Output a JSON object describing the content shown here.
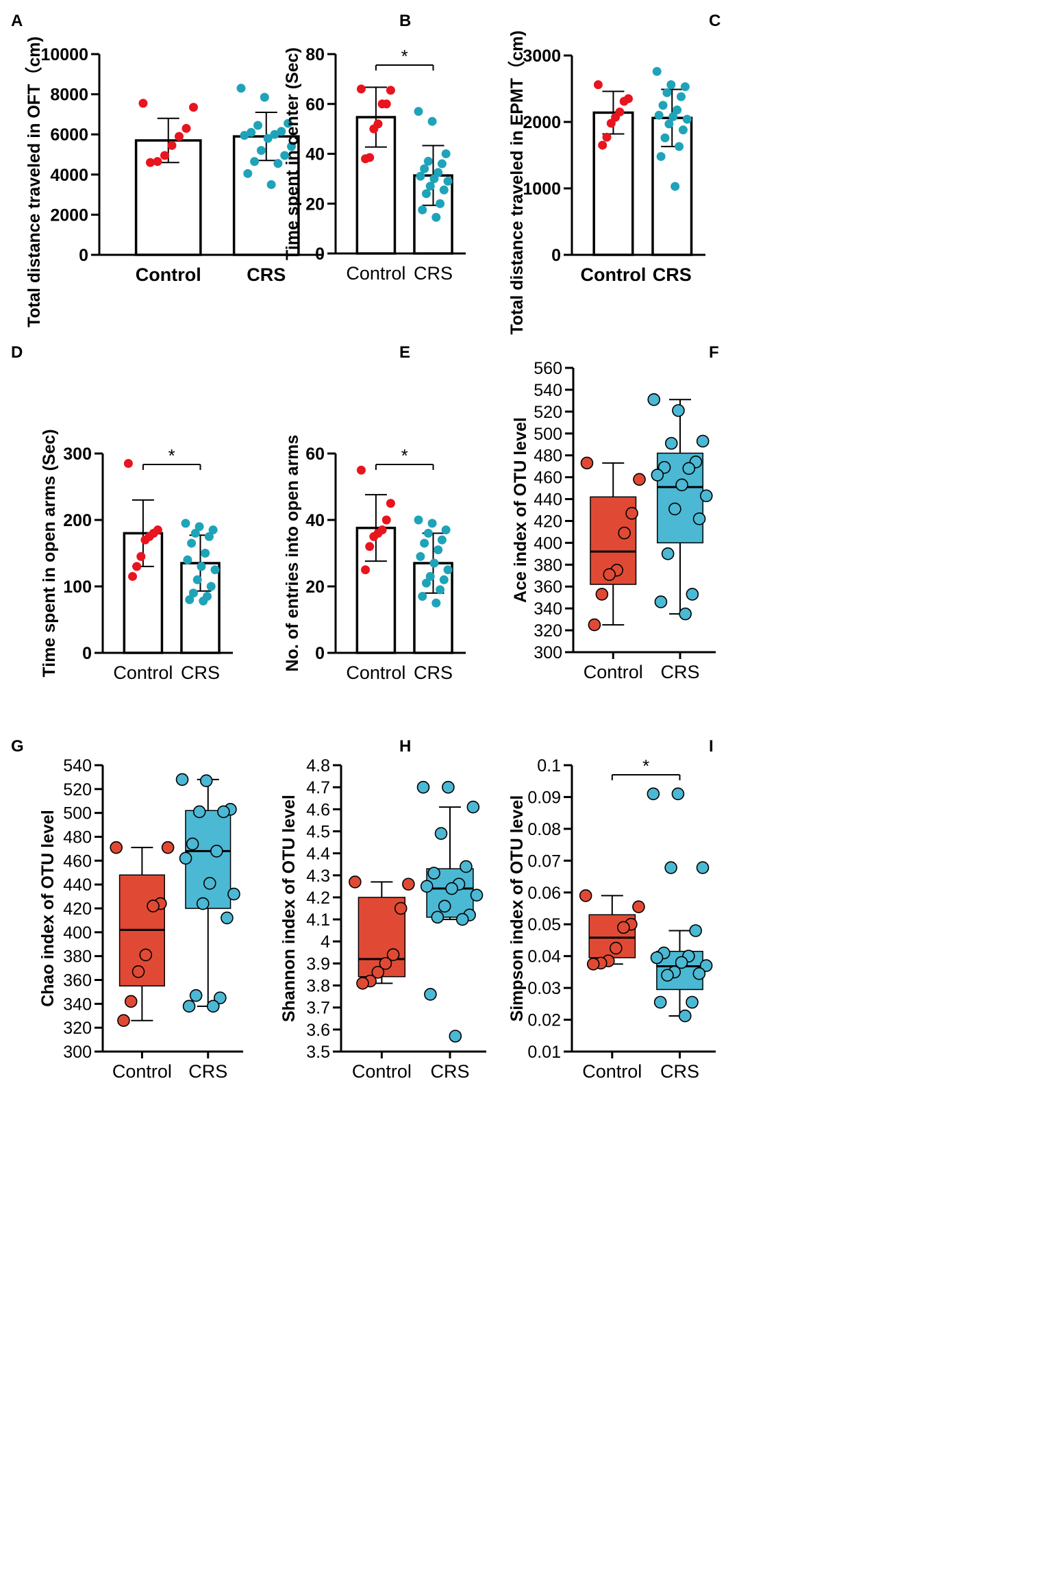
{
  "figure": {
    "colors": {
      "control_dot": "#e8141e",
      "crs_dot": "#1fa3b9",
      "control_box": "#e04a35",
      "crs_box": "#4bb8d4",
      "line": "#000000"
    }
  },
  "chart_data": [
    {
      "id": "A",
      "type": "bar",
      "panel_label": "A",
      "ylabel": "Total distance traveled in OFT（cm)",
      "categories": [
        "Control",
        "CRS"
      ],
      "category_bold": true,
      "ylim": [
        0,
        10000
      ],
      "yticks": [
        0,
        2000,
        4000,
        6000,
        8000,
        10000
      ],
      "tick_labels": [
        "0",
        "2000",
        "4000",
        "6000",
        "8000",
        "10000"
      ],
      "means": [
        5700,
        5900
      ],
      "sd": [
        1100,
        1200
      ],
      "points": [
        [
          7550,
          7350,
          6300,
          5900,
          5450,
          4950,
          4650,
          4600
        ],
        [
          8300,
          7850,
          6550,
          6450,
          6150,
          6100,
          6000,
          5950,
          5800,
          5400,
          5200,
          4950,
          4650,
          4550,
          4050,
          3500
        ]
      ],
      "significance": ""
    },
    {
      "id": "B",
      "type": "bar",
      "panel_label": "B",
      "ylabel": "Time spent in center (Sec)",
      "categories": [
        "Control",
        "CRS"
      ],
      "category_bold": false,
      "ylim": [
        0,
        80
      ],
      "yticks": [
        0,
        20,
        40,
        60,
        80
      ],
      "tick_labels": [
        "0",
        "20",
        "40",
        "60",
        "80"
      ],
      "means": [
        54.7,
        31.3
      ],
      "sd": [
        12,
        12
      ],
      "points": [
        [
          66,
          65.5,
          60,
          60,
          52,
          50,
          38.5,
          38
        ],
        [
          57,
          53,
          40,
          37,
          36,
          34,
          32.5,
          31,
          30,
          29,
          27,
          25.5,
          24,
          20,
          17.5,
          14.5
        ]
      ],
      "significance": "*"
    },
    {
      "id": "C",
      "type": "bar",
      "panel_label": "C",
      "ylabel": "Total distance traveled in EPMT（cm)",
      "categories": [
        "Control",
        "CRS"
      ],
      "category_bold": true,
      "ylim": [
        0,
        3000
      ],
      "yticks": [
        0,
        1000,
        2000,
        3000
      ],
      "tick_labels": [
        "0",
        "1000",
        "2000",
        "3000"
      ],
      "means": [
        2140,
        2060
      ],
      "sd": [
        320,
        430
      ],
      "points": [
        [
          2560,
          2350,
          2310,
          2150,
          2070,
          1980,
          1770,
          1650
        ],
        [
          2760,
          2560,
          2530,
          2440,
          2380,
          2250,
          2180,
          2100,
          2080,
          2040,
          1970,
          1880,
          1760,
          1630,
          1480,
          1030
        ]
      ],
      "significance": ""
    },
    {
      "id": "D",
      "type": "bar",
      "panel_label": "D",
      "ylabel": "Time spent in open arms (Sec)",
      "categories": [
        "Control",
        "CRS"
      ],
      "category_bold": false,
      "ylim": [
        0,
        300
      ],
      "yticks": [
        0,
        100,
        200,
        300
      ],
      "tick_labels": [
        "0",
        "100",
        "200",
        "300"
      ],
      "means": [
        180,
        135
      ],
      "sd": [
        50,
        42
      ],
      "points": [
        [
          285,
          185,
          180,
          175,
          170,
          145,
          130,
          115
        ],
        [
          195,
          190,
          185,
          180,
          175,
          165,
          150,
          140,
          130,
          125,
          110,
          100,
          90,
          85,
          80,
          78
        ]
      ],
      "significance": "*"
    },
    {
      "id": "E",
      "type": "bar",
      "panel_label": "E",
      "ylabel": "No. of entries into open arms",
      "categories": [
        "Control",
        "CRS"
      ],
      "category_bold": false,
      "ylim": [
        0,
        60
      ],
      "yticks": [
        0,
        20,
        40,
        60
      ],
      "tick_labels": [
        "0",
        "20",
        "40",
        "60"
      ],
      "means": [
        37.6,
        27
      ],
      "sd": [
        10,
        9
      ],
      "points": [
        [
          55,
          45,
          40,
          37,
          36,
          35,
          32,
          25
        ],
        [
          40,
          39,
          37,
          36,
          34,
          33,
          31,
          29,
          27,
          25,
          23,
          22,
          21,
          19,
          17,
          15
        ]
      ],
      "significance": "*"
    },
    {
      "id": "F",
      "type": "box",
      "panel_label": "F",
      "ylabel": "Ace index of OTU level",
      "categories": [
        "Control",
        "CRS"
      ],
      "category_bold": false,
      "ylim": [
        300,
        560
      ],
      "yticks": [
        300,
        320,
        340,
        360,
        380,
        400,
        420,
        440,
        460,
        480,
        500,
        520,
        540,
        560
      ],
      "tick_labels": [
        "300",
        "320",
        "340",
        "360",
        "380",
        "400",
        "420",
        "440",
        "460",
        "480",
        "500",
        "520",
        "540",
        "560"
      ],
      "boxes": [
        {
          "min": 325,
          "q1": 362,
          "median": 392,
          "q3": 442,
          "max": 473
        },
        {
          "min": 335,
          "q1": 400,
          "median": 451,
          "q3": 482,
          "max": 531
        }
      ],
      "points": [
        [
          473,
          458,
          427,
          409,
          375,
          371,
          353,
          325
        ],
        [
          531,
          521,
          493,
          491,
          474,
          469,
          468,
          462,
          453,
          443,
          431,
          422,
          390,
          353,
          346,
          335
        ]
      ],
      "significance": ""
    },
    {
      "id": "G",
      "type": "box",
      "panel_label": "G",
      "ylabel": "Chao index of OTU level",
      "categories": [
        "Control",
        "CRS"
      ],
      "category_bold": false,
      "ylim": [
        300,
        540
      ],
      "yticks": [
        300,
        320,
        340,
        360,
        380,
        400,
        420,
        440,
        460,
        480,
        500,
        520,
        540
      ],
      "tick_labels": [
        "300",
        "320",
        "340",
        "360",
        "380",
        "400",
        "420",
        "440",
        "460",
        "480",
        "500",
        "520",
        "540"
      ],
      "boxes": [
        {
          "min": 326,
          "q1": 355,
          "median": 402,
          "q3": 448,
          "max": 471
        },
        {
          "min": 338,
          "q1": 420,
          "median": 468,
          "q3": 502,
          "max": 528
        }
      ],
      "points": [
        [
          471,
          471,
          424,
          422,
          381,
          367,
          342,
          326
        ],
        [
          528,
          527,
          503,
          501,
          501,
          474,
          468,
          462,
          441,
          432,
          424,
          412,
          347,
          345,
          338,
          338
        ]
      ],
      "significance": ""
    },
    {
      "id": "H",
      "type": "box",
      "panel_label": "H",
      "ylabel": "Shannon index of OTU level",
      "categories": [
        "Control",
        "CRS"
      ],
      "category_bold": false,
      "ylim": [
        3.5,
        4.8
      ],
      "yticks": [
        3.5,
        3.6,
        3.7,
        3.8,
        3.9,
        4.0,
        4.1,
        4.2,
        4.3,
        4.4,
        4.5,
        4.6,
        4.7,
        4.8
      ],
      "tick_labels": [
        "3.5",
        "3.6",
        "3.7",
        "3.8",
        "3.9",
        "4",
        "4.1",
        "4.2",
        "4.3",
        "4.4",
        "4.5",
        "4.6",
        "4.7",
        "4.8"
      ],
      "boxes": [
        {
          "min": 3.81,
          "q1": 3.84,
          "median": 3.92,
          "q3": 4.2,
          "max": 4.27
        },
        {
          "min": 4.1,
          "q1": 4.11,
          "median": 4.24,
          "q3": 4.33,
          "max": 4.61
        }
      ],
      "points": [
        [
          4.27,
          4.26,
          4.15,
          3.94,
          3.9,
          3.86,
          3.82,
          3.81
        ],
        [
          4.7,
          4.7,
          4.61,
          4.49,
          4.34,
          4.31,
          4.26,
          4.25,
          4.24,
          4.21,
          4.16,
          4.12,
          4.11,
          4.1,
          3.76,
          3.57
        ]
      ],
      "significance": ""
    },
    {
      "id": "I",
      "type": "box",
      "panel_label": "I",
      "ylabel": "Simpson index of OTU level",
      "categories": [
        "Control",
        "CRS"
      ],
      "category_bold": false,
      "ylim": [
        0.01,
        0.1
      ],
      "yticks": [
        0.01,
        0.02,
        0.03,
        0.04,
        0.05,
        0.06,
        0.07,
        0.08,
        0.09,
        0.1
      ],
      "tick_labels": [
        "0.01",
        "0.02",
        "0.03",
        "0.04",
        "0.05",
        "0.06",
        "0.07",
        "0.08",
        "0.09",
        "0.1"
      ],
      "boxes": [
        {
          "min": 0.0375,
          "q1": 0.0395,
          "median": 0.0458,
          "q3": 0.053,
          "max": 0.059
        },
        {
          "min": 0.0212,
          "q1": 0.0295,
          "median": 0.0368,
          "q3": 0.0415,
          "max": 0.048
        }
      ],
      "points": [
        [
          0.059,
          0.0555,
          0.05,
          0.049,
          0.0425,
          0.0385,
          0.0378,
          0.0375
        ],
        [
          0.091,
          0.091,
          0.0678,
          0.0678,
          0.048,
          0.041,
          0.04,
          0.0395,
          0.038,
          0.037,
          0.035,
          0.0345,
          0.034,
          0.0255,
          0.0255,
          0.0212
        ]
      ],
      "significance": "*"
    }
  ]
}
